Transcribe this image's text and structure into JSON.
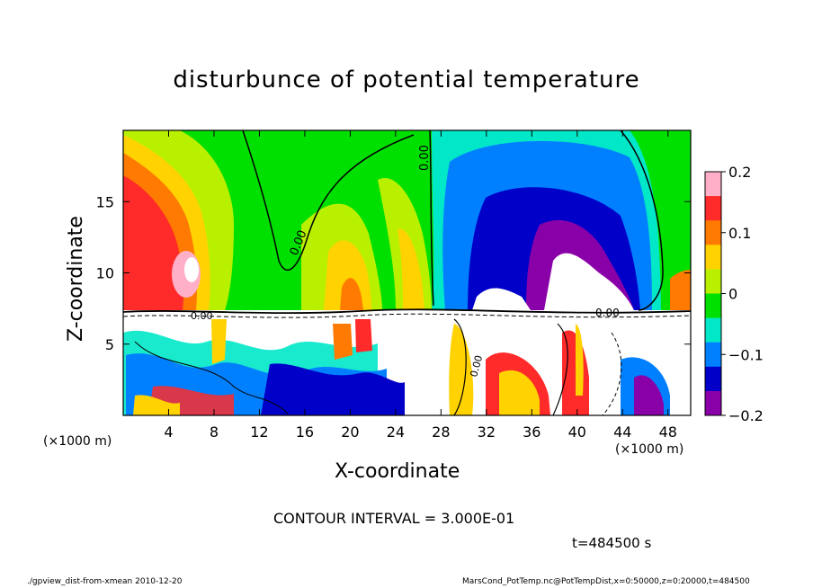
{
  "title": "disturbunce of potential temperature",
  "xlabel": "X-coordinate",
  "ylabel": "Z-coordinate",
  "contour_text": "CONTOUR INTERVAL = 3.000E-01",
  "time_text": "t=484500 s",
  "footer_left": "./gpview_dist-from-xmean   2010-12-20",
  "footer_right": "MarsCond_PotTemp.nc@PotTempDist,x=0:50000,z=0:20000,t=484500",
  "x_units_left": "(×1000 m)",
  "x_units_right": "(×1000 m)",
  "chart_data": {
    "type": "heatmap",
    "title": "disturbunce of potential temperature",
    "xlabel": "X-coordinate",
    "ylabel": "Z-coordinate",
    "xlim": [
      0,
      50
    ],
    "ylim": [
      0,
      20
    ],
    "x_ticks": [
      4,
      8,
      12,
      16,
      20,
      24,
      28,
      32,
      36,
      40,
      44,
      48
    ],
    "y_ticks": [
      5,
      10,
      15
    ],
    "colorbar": {
      "range": [
        -0.2,
        0.2
      ],
      "tick_values": [
        0.2,
        0.1,
        0,
        -0.1,
        -0.2
      ],
      "tick_labels": [
        "0.2",
        "0.1",
        "0",
        "−0.1",
        "−0.2"
      ],
      "colors": [
        "#ffb0c8",
        "#ff2a2a",
        "#ff7a00",
        "#ffd200",
        "#b8f000",
        "#00e000",
        "#00e8c8",
        "#0080ff",
        "#0000c8",
        "#8a00a8"
      ]
    },
    "contour_labels": [
      "0.00",
      "0.00",
      "0.00",
      "0.00",
      "0.00"
    ],
    "annotations": [
      "CONTOUR INTERVAL = 3.000E-01",
      "t=484500 s"
    ]
  }
}
